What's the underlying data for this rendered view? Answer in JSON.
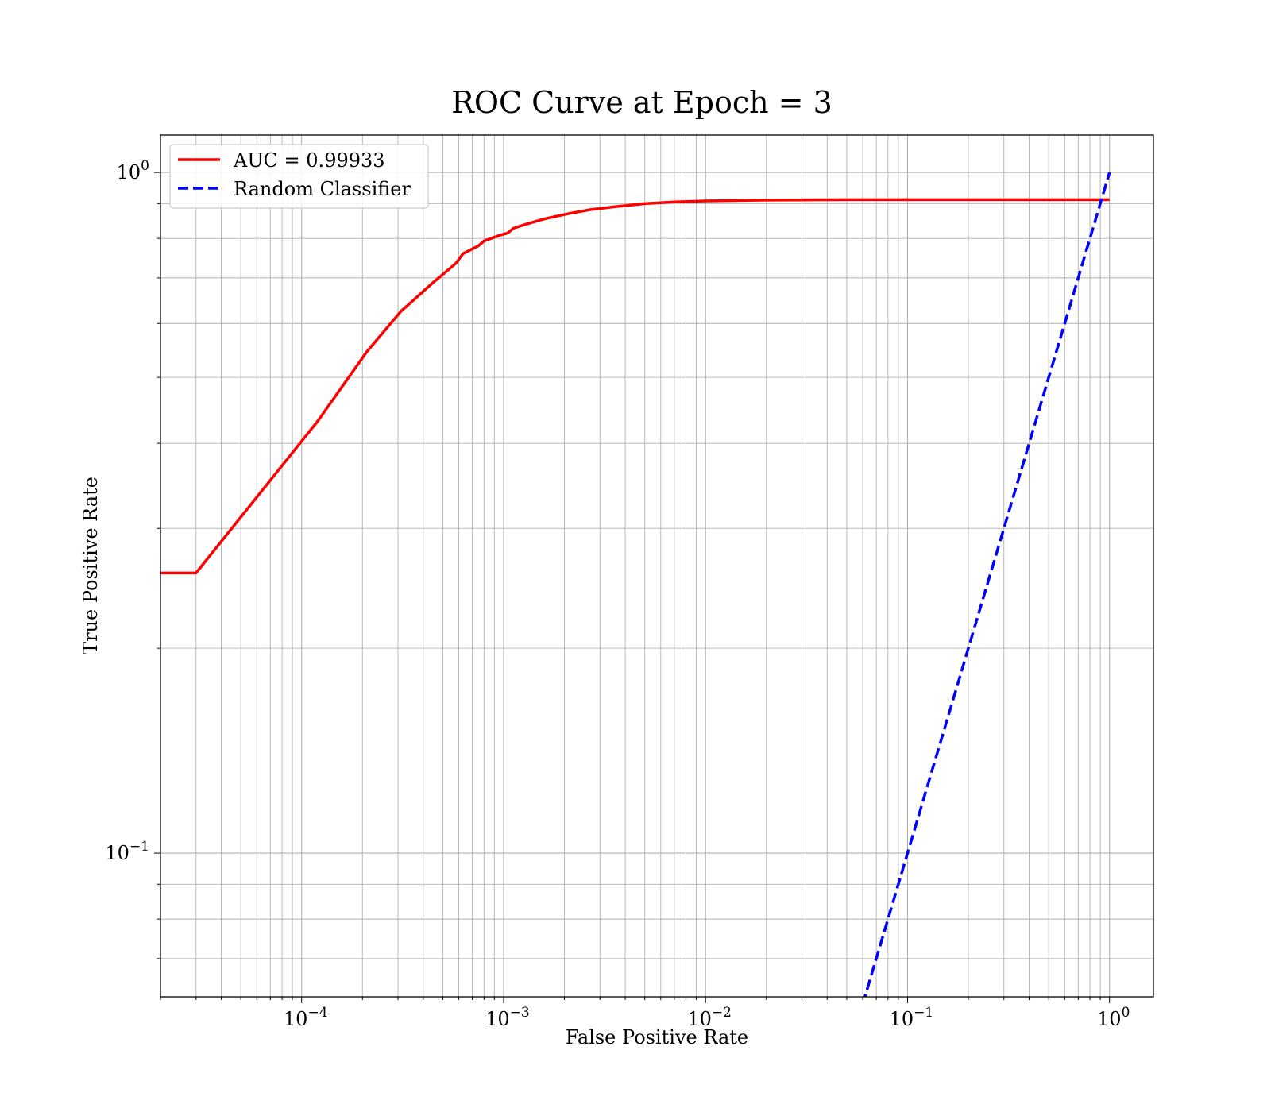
{
  "chart_data": {
    "type": "line",
    "title": "ROC Curve at Epoch = 3",
    "xlabel": "False Positive Rate",
    "ylabel": "True Positive Rate",
    "xscale": "log",
    "yscale": "log",
    "xlim": [
      2e-05,
      1.65
    ],
    "ylim": [
      0.0615,
      1.135
    ],
    "grid": true,
    "grid_which": "both",
    "legend_position": "top-left",
    "x_ticks": [
      {
        "value": 0.0001,
        "base": "10",
        "exp": "−4"
      },
      {
        "value": 0.001,
        "base": "10",
        "exp": "−3"
      },
      {
        "value": 0.01,
        "base": "10",
        "exp": "−2"
      },
      {
        "value": 0.1,
        "base": "10",
        "exp": "−1"
      },
      {
        "value": 1,
        "base": "10",
        "exp": "0"
      }
    ],
    "y_ticks": [
      {
        "value": 0.1,
        "base": "10",
        "exp": "−1"
      },
      {
        "value": 1,
        "base": "10",
        "exp": "0"
      }
    ],
    "series": [
      {
        "name": "AUC = 0.99933",
        "color": "#ff0000",
        "dash": "solid",
        "x": [
          2e-05,
          3e-05,
          0.00012,
          0.00021,
          0.00031,
          0.00045,
          0.00058,
          0.00063,
          0.00075,
          0.0008,
          0.00095,
          0.00105,
          0.00112,
          0.0013,
          0.0016,
          0.0021,
          0.0027,
          0.0035,
          0.005,
          0.007,
          0.01,
          0.02,
          0.05,
          0.1,
          0.3,
          1.0
        ],
        "y": [
          0.258,
          0.258,
          0.431,
          0.545,
          0.625,
          0.69,
          0.735,
          0.76,
          0.78,
          0.793,
          0.808,
          0.815,
          0.828,
          0.84,
          0.855,
          0.87,
          0.882,
          0.89,
          0.9,
          0.905,
          0.908,
          0.911,
          0.912,
          0.912,
          0.912,
          0.912
        ]
      },
      {
        "name": "Random Classifier",
        "color": "#0000ff",
        "dash": "dashed",
        "x": [
          0.06,
          1.0
        ],
        "y": [
          0.06,
          1.0
        ]
      }
    ]
  }
}
